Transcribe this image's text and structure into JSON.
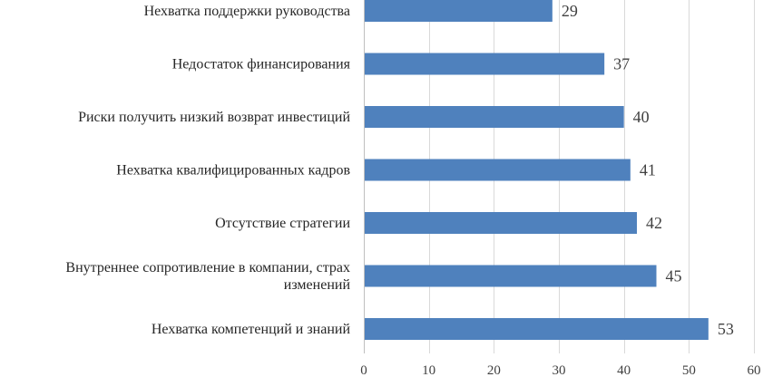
{
  "chart_data": {
    "type": "bar",
    "orientation": "horizontal",
    "categories": [
      "Нехватка поддержки руководства",
      "Недостаток финансирования",
      "Риски получить низкий возврат инвестиций",
      "Нехватка квалифицированных кадров",
      "Отсутствие стратегии",
      "Внутреннее сопротивление в компании, страх изменений",
      "Нехватка компетенций и знаний"
    ],
    "category_lines": [
      [
        "Нехватка поддержки руководства"
      ],
      [
        "Недостаток финансирования"
      ],
      [
        "Риски получить низкий возврат инвестиций"
      ],
      [
        "Нехватка квалифицированных кадров"
      ],
      [
        "Отсутствие стратегии"
      ],
      [
        "Внутреннее сопротивление в компании, страх",
        "изменений"
      ],
      [
        "Нехватка компетенций и знаний"
      ]
    ],
    "values": [
      29,
      37,
      40,
      41,
      42,
      45,
      53
    ],
    "xlim": [
      0,
      60
    ],
    "xticks": [
      0,
      10,
      20,
      30,
      40,
      50,
      60
    ],
    "grid": true,
    "data_labels": true,
    "legend": "none",
    "bar_color": "#4f81bd"
  }
}
